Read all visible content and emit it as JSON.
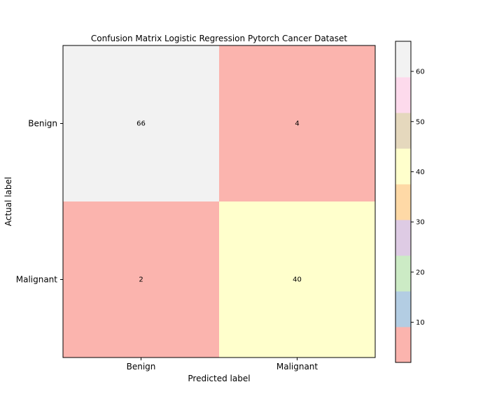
{
  "chart_data": {
    "type": "heatmap",
    "title": "Confusion Matrix Logistic Regression Pytorch Cancer Dataset",
    "xlabel": "Predicted label",
    "ylabel": "Actual label",
    "x_categories": [
      "Benign",
      "Malignant"
    ],
    "y_categories": [
      "Benign",
      "Malignant"
    ],
    "values": [
      [
        66,
        4
      ],
      [
        2,
        40
      ]
    ],
    "colormap": "Pastel1",
    "colors": {
      "Benign|Benign": "#f2f2f2",
      "Benign|Malignant": "#fbb4ae",
      "Malignant|Benign": "#fbb4ae",
      "Malignant|Malignant": "#ffffcc"
    },
    "colorbar": {
      "range": [
        2,
        66
      ],
      "ticks": [
        10,
        20,
        30,
        40,
        50,
        60
      ],
      "tick_labels": [
        "10",
        "20",
        "30",
        "40",
        "50",
        "60"
      ],
      "bands": [
        "#fbb4ae",
        "#b3cde3",
        "#ccebc5",
        "#decbe4",
        "#fed9a6",
        "#ffffcc",
        "#e5d8bd",
        "#fddaec",
        "#f2f2f2"
      ]
    },
    "grid": false,
    "legend": "colorbar-right"
  }
}
